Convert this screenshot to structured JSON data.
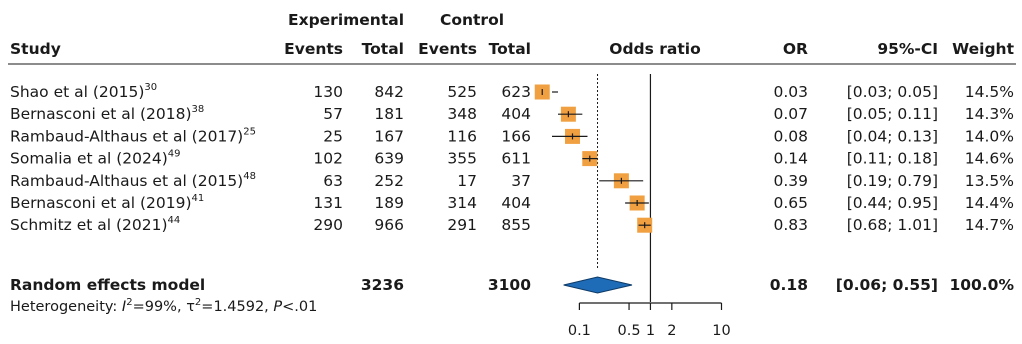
{
  "chart_data": {
    "type": "forest",
    "header": {
      "group_experimental": "Experimental",
      "group_control": "Control",
      "study": "Study",
      "events": "Events",
      "total": "Total",
      "plot_title": "Odds ratio",
      "or": "OR",
      "ci": "95%-CI",
      "weight": "Weight"
    },
    "studies": [
      {
        "name": "Shao et al (2015)",
        "ref": "30",
        "e_events": "130",
        "e_total": "842",
        "c_events": "525",
        "c_total": "623",
        "or": 0.03,
        "lower": 0.03,
        "upper": 0.05,
        "or_text": "0.03",
        "ci_text": "[0.03; 0.05]",
        "weight_text": "14.5%"
      },
      {
        "name": "Bernasconi et al (2018)",
        "ref": "38",
        "e_events": "57",
        "e_total": "181",
        "c_events": "348",
        "c_total": "404",
        "or": 0.07,
        "lower": 0.05,
        "upper": 0.11,
        "or_text": "0.07",
        "ci_text": "[0.05; 0.11]",
        "weight_text": "14.3%"
      },
      {
        "name": "Rambaud-Althaus et al (2017)",
        "ref": "25",
        "e_events": "25",
        "e_total": "167",
        "c_events": "116",
        "c_total": "166",
        "or": 0.08,
        "lower": 0.04,
        "upper": 0.13,
        "or_text": "0.08",
        "ci_text": "[0.04; 0.13]",
        "weight_text": "14.0%"
      },
      {
        "name": "Somalia et al (2024)",
        "ref": "49",
        "e_events": "102",
        "e_total": "639",
        "c_events": "355",
        "c_total": "611",
        "or": 0.14,
        "lower": 0.11,
        "upper": 0.18,
        "or_text": "0.14",
        "ci_text": "[0.11; 0.18]",
        "weight_text": "14.6%"
      },
      {
        "name": "Rambaud-Althaus et al (2015)",
        "ref": "48",
        "e_events": "63",
        "e_total": "252",
        "c_events": "17",
        "c_total": "37",
        "or": 0.39,
        "lower": 0.19,
        "upper": 0.79,
        "or_text": "0.39",
        "ci_text": "[0.19; 0.79]",
        "weight_text": "13.5%"
      },
      {
        "name": "Bernasconi et al (2019)",
        "ref": "41",
        "e_events": "131",
        "e_total": "189",
        "c_events": "314",
        "c_total": "404",
        "or": 0.65,
        "lower": 0.44,
        "upper": 0.95,
        "or_text": "0.65",
        "ci_text": "[0.44; 0.95]",
        "weight_text": "14.4%"
      },
      {
        "name": "Schmitz et al (2021)",
        "ref": "44",
        "e_events": "290",
        "e_total": "966",
        "c_events": "291",
        "c_total": "855",
        "or": 0.83,
        "lower": 0.68,
        "upper": 1.01,
        "or_text": "0.83",
        "ci_text": "[0.68; 1.01]",
        "weight_text": "14.7%"
      }
    ],
    "pooled": {
      "label": "Random effects model",
      "e_total": "3236",
      "c_total": "3100",
      "or": 0.18,
      "lower": 0.06,
      "upper": 0.55,
      "or_text": "0.18",
      "ci_text": "[0.06; 0.55]",
      "weight_text": "100.0%"
    },
    "heterogeneity": {
      "prefix": "Heterogeneity: ",
      "i2_symbol": "I",
      "i2_sup": "2",
      "i2_value": "=99%, ",
      "tau_symbol": "τ",
      "tau_sup": "2",
      "tau_value": "=1.4592, ",
      "p_symbol": "P",
      "p_value": "<.01"
    },
    "x_scale": "log",
    "xlim": [
      0.05,
      16
    ],
    "ticks": [
      {
        "value": 0.1,
        "label": "0.1"
      },
      {
        "value": 0.5,
        "label": "0.5"
      },
      {
        "value": 1,
        "label": "1"
      },
      {
        "value": 2,
        "label": "2"
      },
      {
        "value": 10,
        "label": "10"
      }
    ],
    "null_value": 1,
    "colors": {
      "square": "#f0a040",
      "diamond": "#1e6bb8",
      "diamond_stroke": "#0e3a66",
      "ci_line": "#1a1a1a",
      "axis": "#1a1a1a"
    }
  }
}
